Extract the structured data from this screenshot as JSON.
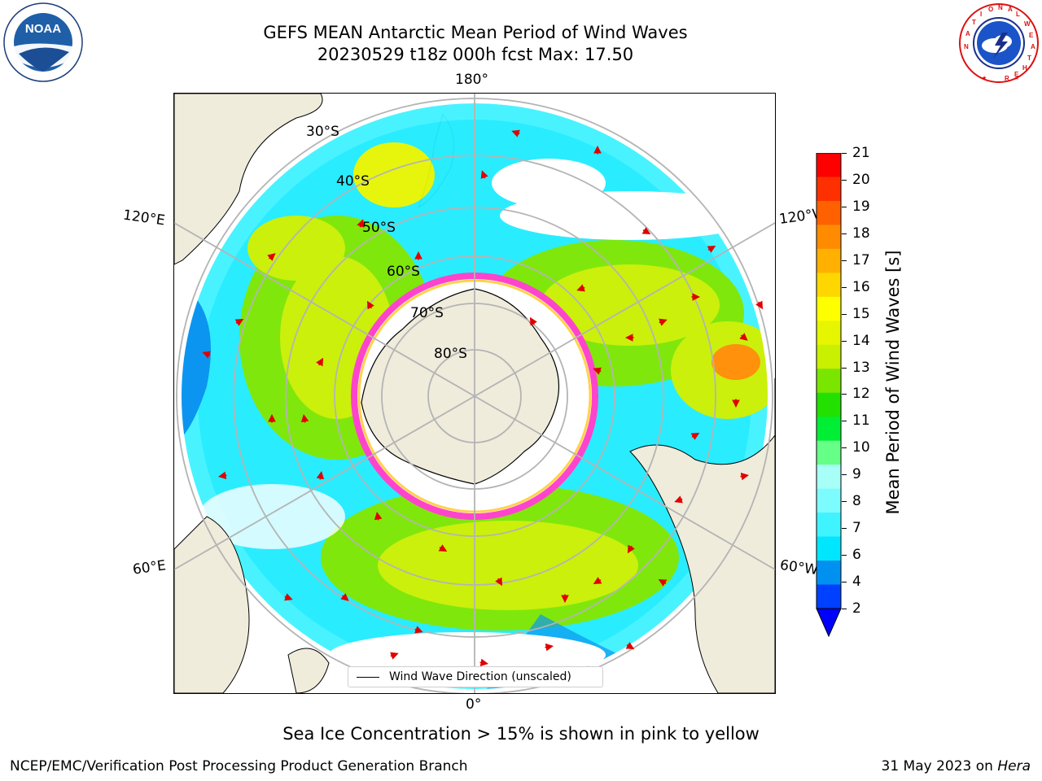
{
  "title": {
    "line1": "GEFS MEAN Antarctic Mean Period of Wind Waves",
    "line2": "20230529 t18z 000h fcst   Max: 17.50"
  },
  "logos": {
    "left": {
      "icon": "noaa-logo",
      "text": "NOAA"
    },
    "right": {
      "icon": "nws-logo",
      "text": "NATIONAL WEATHER SERVICE"
    }
  },
  "map": {
    "projection": "south-polar-stereographic",
    "longitude_labels": {
      "top": "180°",
      "bottom": "0°",
      "left_upper": "120°E",
      "left_lower": "60°E",
      "right_upper": "120°W",
      "right_lower": "60°W"
    },
    "latitude_labels": [
      "30°S",
      "40°S",
      "50°S",
      "60°S",
      "70°S",
      "80°S"
    ],
    "legend": "Wind Wave Direction (unscaled)",
    "colors": {
      "land": "#efecdc",
      "coast": "#000000",
      "grid": "#b4b4b4",
      "arrow": "#e00000",
      "ice_pink": "#ff44cc",
      "ice_yellow": "#ffd24a"
    }
  },
  "colorbar": {
    "label": "Mean Period of Wind Waves [s]",
    "ticks": [
      "21",
      "20",
      "19",
      "18",
      "17",
      "16",
      "15",
      "14",
      "13",
      "12",
      "11",
      "10",
      "9",
      "8",
      "7",
      "6",
      "4",
      "2"
    ],
    "colors_top_to_bottom": [
      "#ff0000",
      "#ff3000",
      "#ff6000",
      "#ff8c00",
      "#ffb000",
      "#ffd700",
      "#ffff00",
      "#e6f500",
      "#c8f000",
      "#7ae600",
      "#22e000",
      "#00ef34",
      "#66ff88",
      "#a8fff8",
      "#7dfcff",
      "#3ff3ff",
      "#00e6ff",
      "#0090f0",
      "#0040ff"
    ],
    "extend_color": "#0000ff"
  },
  "note": "Sea Ice Concentration > 15% is shown in pink to yellow",
  "footer": {
    "left": "NCEP/EMC/Verification Post Processing Product Generation Branch",
    "right_date": "31 May 2023 on",
    "right_host": "Hera"
  }
}
